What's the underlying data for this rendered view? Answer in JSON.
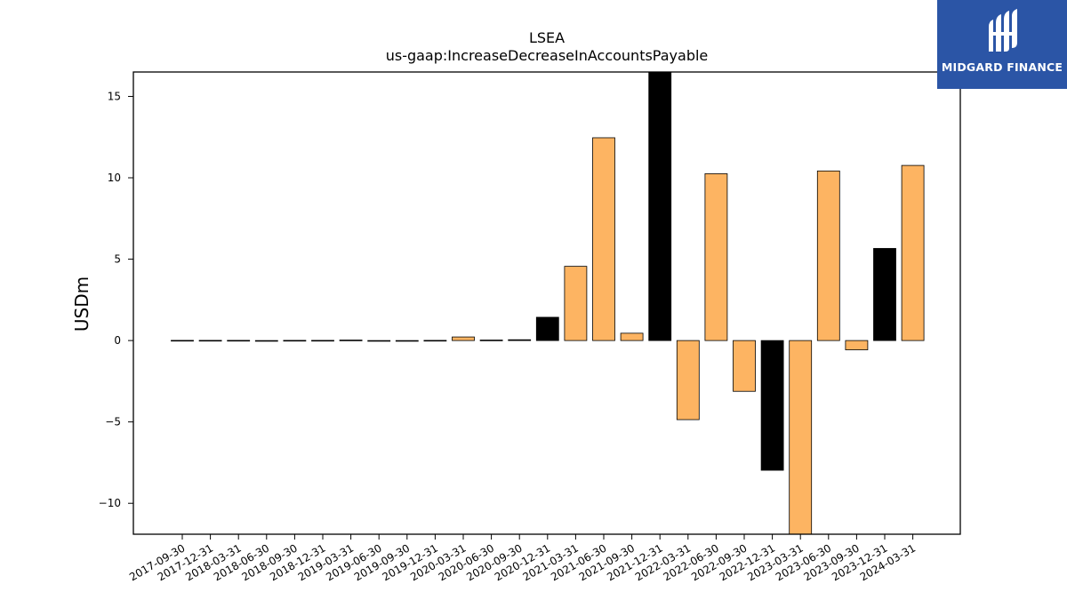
{
  "brand": {
    "name": "MIDGARD FINANCE",
    "bg_color": "#2b55a6",
    "icon": "midgard-logo-icon"
  },
  "chart_data": {
    "type": "bar",
    "title": "LSEA",
    "subtitle": "us-gaap:IncreaseDecreaseInAccountsPayable",
    "xlabel": "",
    "ylabel": "USDm",
    "ylim": [
      -11.9,
      16.5
    ],
    "yticks": [
      -10,
      -5,
      0,
      5,
      10,
      15
    ],
    "grid": false,
    "legend": "none",
    "colors": {
      "primary": "#fdb462",
      "alternate": "#000000",
      "edge": "#000000"
    },
    "categories": [
      "2017-09-30",
      "2017-12-31",
      "2018-03-31",
      "2018-06-30",
      "2018-09-30",
      "2018-12-31",
      "2019-03-31",
      "2019-06-30",
      "2019-09-30",
      "2019-12-31",
      "2020-03-31",
      "2020-06-30",
      "2020-09-30",
      "2020-12-31",
      "2021-03-31",
      "2021-06-30",
      "2021-09-30",
      "2021-12-31",
      "2022-03-31",
      "2022-06-30",
      "2022-09-30",
      "2022-12-31",
      "2023-03-31",
      "2023-06-30",
      "2023-09-30",
      "2023-12-31",
      "2024-03-31"
    ],
    "values": [
      0.01,
      0.01,
      0.01,
      -0.04,
      0.01,
      0.01,
      0.03,
      -0.03,
      -0.03,
      0.01,
      0.22,
      0.03,
      0.05,
      1.43,
      4.56,
      12.46,
      0.45,
      16.5,
      -4.86,
      10.25,
      -3.12,
      -7.97,
      -11.9,
      10.42,
      -0.57,
      5.66,
      10.76
    ],
    "bar_colors": [
      "primary",
      "primary",
      "primary",
      "alternate",
      "primary",
      "primary",
      "alternate",
      "alternate",
      "alternate",
      "primary",
      "primary",
      "alternate",
      "alternate",
      "alternate",
      "primary",
      "primary",
      "primary",
      "alternate",
      "primary",
      "primary",
      "primary",
      "alternate",
      "primary",
      "primary",
      "primary",
      "alternate",
      "primary"
    ]
  }
}
